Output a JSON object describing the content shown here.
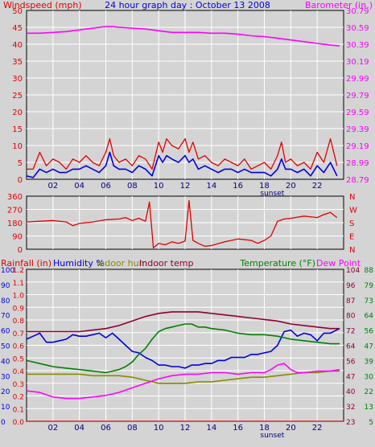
{
  "header": {
    "title": "24 hour graph day : October 13 2008",
    "left_label": "Windspeed (mph)",
    "right_label": "Barometer (in.)"
  },
  "colors": {
    "background": "#d4d4d4",
    "plot_bg": "#d4d4d4",
    "grid": "#ffffff",
    "red": "#e00000",
    "blue": "#0000e0",
    "magenta": "#ff00ff",
    "olive": "#8a8a00",
    "maroon": "#900030",
    "green": "#008000"
  },
  "x_axis": {
    "ticks": [
      "02",
      "04",
      "06",
      "08",
      "10",
      "12",
      "14",
      "16",
      "18",
      "20",
      "22"
    ],
    "sunset_label": "sunset",
    "range_hours": [
      0,
      24
    ]
  },
  "chart_data": [
    {
      "type": "line",
      "title": "24 hour graph day : October 13 2008",
      "ylabel": "Windspeed (mph)",
      "ylabel_right": "Barometer (in.)",
      "ylim": [
        0,
        50
      ],
      "ylim_right": [
        28.79,
        30.79
      ],
      "y_ticks": [
        "0",
        "5",
        "10",
        "15",
        "20",
        "25",
        "30",
        "35",
        "40",
        "45",
        "50"
      ],
      "y_ticks_right": [
        "28.79",
        "28.99",
        "29.19",
        "29.39",
        "29.59",
        "29.79",
        "29.99",
        "30.19",
        "30.39",
        "30.59",
        "30.79"
      ],
      "series": [
        {
          "name": "Barometer",
          "axis": "right",
          "color": "magenta",
          "x": [
            0,
            1,
            2,
            3,
            4,
            5,
            5.5,
            6,
            6.5,
            7,
            8,
            9,
            10,
            11,
            12,
            13,
            14,
            15,
            16,
            17,
            18,
            19,
            20,
            21,
            22,
            23,
            23.7
          ],
          "values": [
            30.52,
            30.52,
            30.53,
            30.54,
            30.56,
            30.58,
            30.59,
            30.6,
            30.6,
            30.59,
            30.58,
            30.57,
            30.55,
            30.53,
            30.53,
            30.53,
            30.52,
            30.52,
            30.51,
            30.49,
            30.48,
            30.46,
            30.44,
            30.42,
            30.4,
            30.38,
            30.37
          ]
        },
        {
          "name": "Wind gust",
          "color": "red",
          "x": [
            0,
            0.5,
            1,
            1.5,
            2,
            2.5,
            3,
            3.5,
            4,
            4.5,
            5,
            5.5,
            6,
            6.3,
            6.6,
            7,
            7.5,
            8,
            8.5,
            9,
            9.5,
            10,
            10.3,
            10.6,
            11,
            11.5,
            12,
            12.3,
            12.6,
            13,
            13.5,
            14,
            14.5,
            15,
            15.5,
            16,
            16.5,
            17,
            17.5,
            18,
            18.5,
            19,
            19.3,
            19.6,
            20,
            20.5,
            21,
            21.5,
            22,
            22.5,
            23,
            23.5
          ],
          "values": [
            3,
            3,
            8,
            4,
            6,
            5,
            3,
            6,
            5,
            7,
            5,
            4,
            8,
            12,
            7,
            5,
            6,
            4,
            7,
            6,
            3,
            11,
            8,
            12,
            10,
            9,
            12,
            8,
            11,
            6,
            7,
            5,
            4,
            6,
            5,
            4,
            6,
            3,
            4,
            5,
            3,
            7,
            11,
            5,
            6,
            4,
            5,
            3,
            8,
            5,
            12,
            4
          ]
        },
        {
          "name": "Windspeed",
          "color": "blue",
          "x": [
            0,
            0.5,
            1,
            1.5,
            2,
            2.5,
            3,
            3.5,
            4,
            4.5,
            5,
            5.5,
            6,
            6.3,
            6.6,
            7,
            7.5,
            8,
            8.5,
            9,
            9.5,
            10,
            10.3,
            10.6,
            11,
            11.5,
            12,
            12.3,
            12.6,
            13,
            13.5,
            14,
            14.5,
            15,
            15.5,
            16,
            16.5,
            17,
            17.5,
            18,
            18.5,
            19,
            19.3,
            19.6,
            20,
            20.5,
            21,
            21.5,
            22,
            22.5,
            23,
            23.5
          ],
          "values": [
            1,
            0.5,
            3,
            2,
            3,
            2,
            2,
            3,
            3,
            4,
            3,
            2,
            4,
            8,
            4,
            3,
            3,
            2,
            4,
            3,
            1,
            7,
            5,
            7,
            6,
            5,
            7,
            5,
            6,
            3,
            4,
            3,
            2,
            3,
            3,
            2,
            3,
            2,
            2,
            2,
            1,
            3,
            6,
            3,
            3,
            2,
            3,
            1,
            4,
            2,
            5,
            1
          ]
        }
      ]
    },
    {
      "type": "line",
      "ylabel_right": "N W S E N",
      "ylim": [
        0,
        360
      ],
      "y_ticks": [
        "0",
        "90",
        "180",
        "270",
        "360"
      ],
      "y_ticks_right": [
        "N",
        "E",
        "S",
        "W",
        "N"
      ],
      "series": [
        {
          "name": "Wind direction",
          "color": "red",
          "x": [
            0,
            1,
            2,
            3,
            3.5,
            4,
            5,
            6,
            7,
            7.5,
            8,
            8.5,
            9,
            9.3,
            9.6,
            10,
            10.5,
            11,
            11.5,
            12,
            12.3,
            12.6,
            13,
            13.5,
            14,
            15,
            16,
            17,
            17.5,
            18,
            18.5,
            19,
            19.5,
            20,
            21,
            22,
            22.5,
            23,
            23.5
          ],
          "values": [
            185,
            190,
            195,
            185,
            160,
            175,
            185,
            200,
            205,
            215,
            195,
            210,
            190,
            320,
            10,
            40,
            30,
            50,
            40,
            55,
            330,
            60,
            40,
            20,
            25,
            50,
            70,
            60,
            40,
            60,
            90,
            190,
            205,
            210,
            225,
            215,
            235,
            250,
            215
          ]
        }
      ]
    },
    {
      "type": "line",
      "ylabel": "Rainfall (in)",
      "ylabel_2": "Humidity %",
      "ylabel_3": "Indoor hum",
      "ylabel_4": "Indoor temp",
      "ylabel_right": "Temperature (°F)",
      "ylabel_right_2": "Dew Point",
      "ylim": [
        0,
        100
      ],
      "y_ticks_rain": [
        "0.0",
        "0.1",
        "0.2",
        "0.3",
        "0.4",
        "0.5",
        "0.6",
        "0.7",
        "0.8",
        "0.9",
        "1.0",
        "1.1",
        "1.2"
      ],
      "y_ticks_humidity": [
        "0",
        "10",
        "20",
        "30",
        "40",
        "50",
        "60",
        "70",
        "80",
        "90",
        "100"
      ],
      "y_ticks_temp": [
        "23",
        "32",
        "40",
        "47",
        "56",
        "64",
        "72",
        "80",
        "87",
        "96",
        "104"
      ],
      "y_ticks_dew": [
        "5",
        "13",
        "22",
        "30",
        "39",
        "47",
        "56",
        "64",
        "73",
        "79",
        "88"
      ],
      "series": [
        {
          "name": "Rainfall",
          "color": "red",
          "x": [
            0,
            24
          ],
          "values": [
            0,
            0
          ]
        },
        {
          "name": "Humidity %",
          "color": "blue",
          "x": [
            0,
            0.5,
            1,
            1.5,
            2,
            2.5,
            3,
            3.5,
            4,
            4.5,
            5,
            5.5,
            6,
            6.5,
            7,
            7.5,
            8,
            8.5,
            9,
            9.5,
            10,
            10.5,
            11,
            11.5,
            12,
            12.5,
            13,
            13.5,
            14,
            14.5,
            15,
            15.5,
            16,
            16.5,
            17,
            17.5,
            18,
            18.5,
            19,
            19.5,
            20,
            20.5,
            21,
            21.5,
            22,
            22.5,
            23,
            23.7
          ],
          "values": [
            54,
            56,
            58,
            52,
            52,
            53,
            54,
            57,
            56,
            56,
            57,
            58,
            55,
            58,
            54,
            50,
            46,
            45,
            42,
            40,
            37,
            37,
            36,
            36,
            35,
            37,
            37,
            38,
            38,
            40,
            40,
            42,
            42,
            42,
            44,
            44,
            45,
            46,
            50,
            59,
            60,
            56,
            58,
            57,
            53,
            58,
            58,
            61
          ]
        },
        {
          "name": "Indoor hum",
          "color": "olive",
          "x": [
            0,
            1,
            2,
            3,
            4,
            5,
            6,
            7,
            8,
            9,
            10,
            11,
            12,
            13,
            14,
            15,
            16,
            17,
            18,
            19,
            20,
            21,
            22,
            23,
            23.7
          ],
          "values": [
            31,
            31,
            31,
            31,
            31,
            30,
            30,
            30,
            29,
            27,
            25,
            25,
            25,
            26,
            26,
            27,
            28,
            29,
            29,
            30,
            31,
            32,
            32,
            33,
            33
          ]
        },
        {
          "name": "Indoor temp",
          "color": "maroon",
          "x": [
            0,
            1,
            2,
            3,
            4,
            5,
            6,
            7,
            8,
            9,
            10,
            11,
            12,
            13,
            14,
            15,
            16,
            17,
            18,
            19,
            20,
            21,
            22,
            23,
            23.7
          ],
          "values": [
            59,
            59,
            59,
            59,
            59,
            60,
            61,
            63,
            66,
            69,
            71,
            72,
            72,
            72,
            71,
            70,
            69,
            68,
            67,
            66,
            64,
            63,
            62,
            61,
            61
          ]
        },
        {
          "name": "Temperature",
          "color": "green",
          "x": [
            0,
            1,
            2,
            3,
            4,
            5,
            6,
            6.5,
            7,
            7.5,
            8,
            8.5,
            9,
            9.5,
            10,
            10.5,
            11,
            11.5,
            12,
            12.5,
            13,
            13.5,
            14,
            15,
            16,
            17,
            18,
            19,
            20,
            21,
            22,
            23,
            23.7
          ],
          "values": [
            40,
            38,
            36,
            35,
            34,
            33,
            32,
            33,
            34,
            36,
            39,
            44,
            48,
            54,
            59,
            61,
            62,
            63,
            64,
            64,
            62,
            62,
            61,
            60,
            58,
            57,
            57,
            56,
            54,
            53,
            52,
            51,
            51
          ]
        },
        {
          "name": "Dew Point",
          "color": "magenta",
          "x": [
            0,
            1,
            2,
            3,
            4,
            5,
            6,
            7,
            8,
            9,
            10,
            11,
            12,
            13,
            14,
            15,
            16,
            17,
            18,
            18.5,
            19,
            19.5,
            20,
            20.5,
            21,
            22,
            23,
            23.7
          ],
          "values": [
            20,
            19,
            16,
            15,
            15,
            16,
            17,
            19,
            22,
            25,
            28,
            30,
            31,
            31,
            32,
            32,
            31,
            32,
            32,
            34,
            37,
            38,
            34,
            32,
            32,
            33,
            33,
            34
          ]
        }
      ]
    }
  ]
}
